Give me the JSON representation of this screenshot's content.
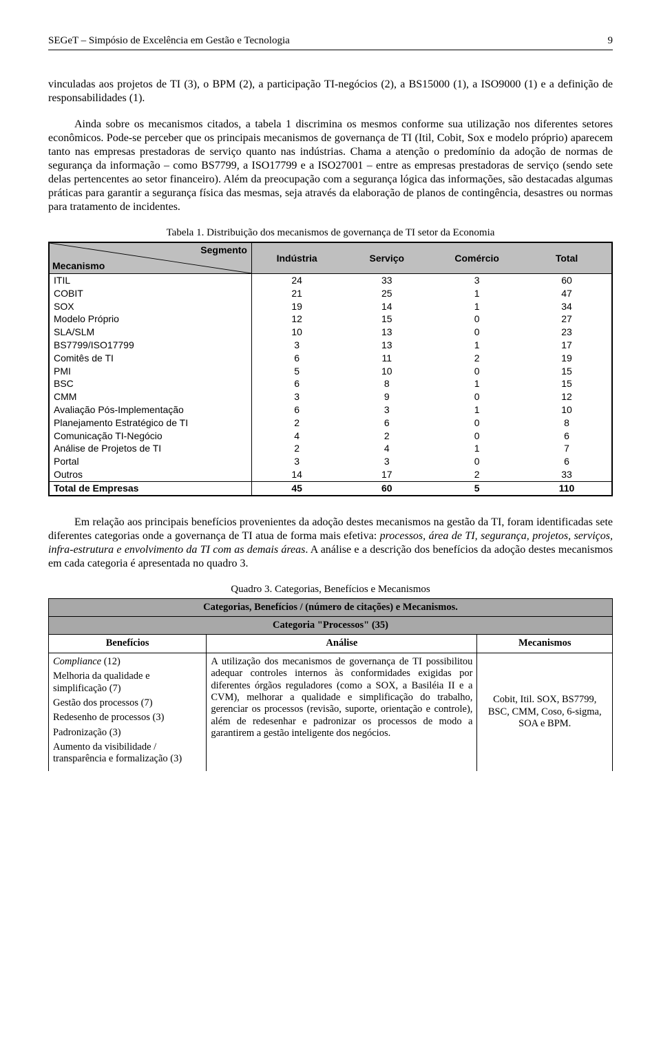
{
  "header": {
    "text": "SEGeT – Simpósio de Excelência em Gestão e Tecnologia",
    "page": "9"
  },
  "para1": "vinculadas aos projetos de TI (3), o BPM (2), a participação TI-negócios (2), a BS15000 (1), a ISO9000 (1) e a definição de responsabilidades (1).",
  "para2": "Ainda sobre os mecanismos citados, a tabela 1 discrimina os mesmos conforme sua utilização nos diferentes setores econômicos. Pode-se perceber que os principais mecanismos de governança de TI (Itil, Cobit, Sox e modelo próprio) aparecem tanto nas empresas prestadoras de serviço quanto nas indústrias. Chama a atenção o predomínio da adoção de normas de segurança da informação – como BS7799, a ISO17799 e a ISO27001 – entre as empresas prestadoras de serviço (sendo sete delas pertencentes ao setor financeiro). Além da preocupação com a segurança lógica das informações, são destacadas algumas práticas para garantir a segurança física das mesmas, seja através da elaboração de planos de contingência, desastres ou normas para tratamento de incidentes.",
  "table1": {
    "caption": "Tabela 1. Distribuição dos mecanismos de governança de TI setor da Economia",
    "diag_top": "Segmento",
    "diag_bottom": "Mecanismo",
    "cols": [
      "Indústria",
      "Serviço",
      "Comércio",
      "Total"
    ],
    "rows": [
      {
        "m": "ITIL",
        "v": [
          24,
          33,
          3,
          60
        ]
      },
      {
        "m": "COBIT",
        "v": [
          21,
          25,
          1,
          47
        ]
      },
      {
        "m": "SOX",
        "v": [
          19,
          14,
          1,
          34
        ]
      },
      {
        "m": "Modelo Próprio",
        "v": [
          12,
          15,
          0,
          27
        ]
      },
      {
        "m": "SLA/SLM",
        "v": [
          10,
          13,
          0,
          23
        ]
      },
      {
        "m": "BS7799/ISO17799",
        "v": [
          3,
          13,
          1,
          17
        ]
      },
      {
        "m": "Comitês de TI",
        "v": [
          6,
          11,
          2,
          19
        ]
      },
      {
        "m": "PMI",
        "v": [
          5,
          10,
          0,
          15
        ]
      },
      {
        "m": "BSC",
        "v": [
          6,
          8,
          1,
          15
        ]
      },
      {
        "m": "CMM",
        "v": [
          3,
          9,
          0,
          12
        ]
      },
      {
        "m": "Avaliação Pós-Implementação",
        "v": [
          6,
          3,
          1,
          10
        ]
      },
      {
        "m": "Planejamento Estratégico de TI",
        "v": [
          2,
          6,
          0,
          8
        ]
      },
      {
        "m": "Comunicação TI-Negócio",
        "v": [
          4,
          2,
          0,
          6
        ]
      },
      {
        "m": "Análise de Projetos de TI",
        "v": [
          2,
          4,
          1,
          7
        ]
      },
      {
        "m": "Portal",
        "v": [
          3,
          3,
          0,
          6
        ]
      },
      {
        "m": "Outros",
        "v": [
          14,
          17,
          2,
          33
        ]
      }
    ],
    "total_row": {
      "m": "Total de Empresas",
      "v": [
        45,
        60,
        5,
        110
      ]
    }
  },
  "para3_a": "Em relação aos principais benefícios provenientes da adoção destes mecanismos na gestão da TI, foram identificadas sete diferentes categorias onde a governança de TI atua de forma mais efetiva: ",
  "para3_b": "processos, área de TI, segurança, projetos, serviços, infra-estrutura e envolvimento da TI com as demais áreas",
  "para3_c": ". A análise e a descrição dos benefícios da adoção destes mecanismos em cada categoria é apresentada no quadro 3.",
  "quadro3": {
    "caption": "Quadro 3. Categorias, Benefícios e Mecanismos",
    "banner1": "Categorias, Benefícios / (número de citações) e Mecanismos.",
    "banner2": "Categoria \"Processos\" (35)",
    "head_ben": "Benefícios",
    "head_ana": "Análise",
    "head_mec": "Mecanismos",
    "benef_lines": [
      {
        "t": "Compliance (12)",
        "it": true
      },
      {
        "t": "Melhoria da qualidade e simplificação (7)"
      },
      {
        "t": "Gestão dos processos (7)"
      },
      {
        "t": "Redesenho de processos (3)"
      },
      {
        "t": "Padronização (3)"
      },
      {
        "t": "Aumento da visibilidade / transparência e formalização (3)"
      }
    ],
    "analise": "A utilização dos mecanismos de governança de TI possibilitou adequar controles internos às conformidades exigidas por diferentes órgãos reguladores (como a SOX, a Basiléia II e a CVM), melhorar a qualidade e simplificação do trabalho, gerenciar os processos (revisão, suporte, orientação e controle), além de redesenhar e padronizar os processos de modo a garantirem a gestão inteligente dos negócios.",
    "mecanismos": "Cobit, Itil. SOX, BS7799, BSC, CMM, Coso, 6-sigma, SOA e BPM."
  }
}
